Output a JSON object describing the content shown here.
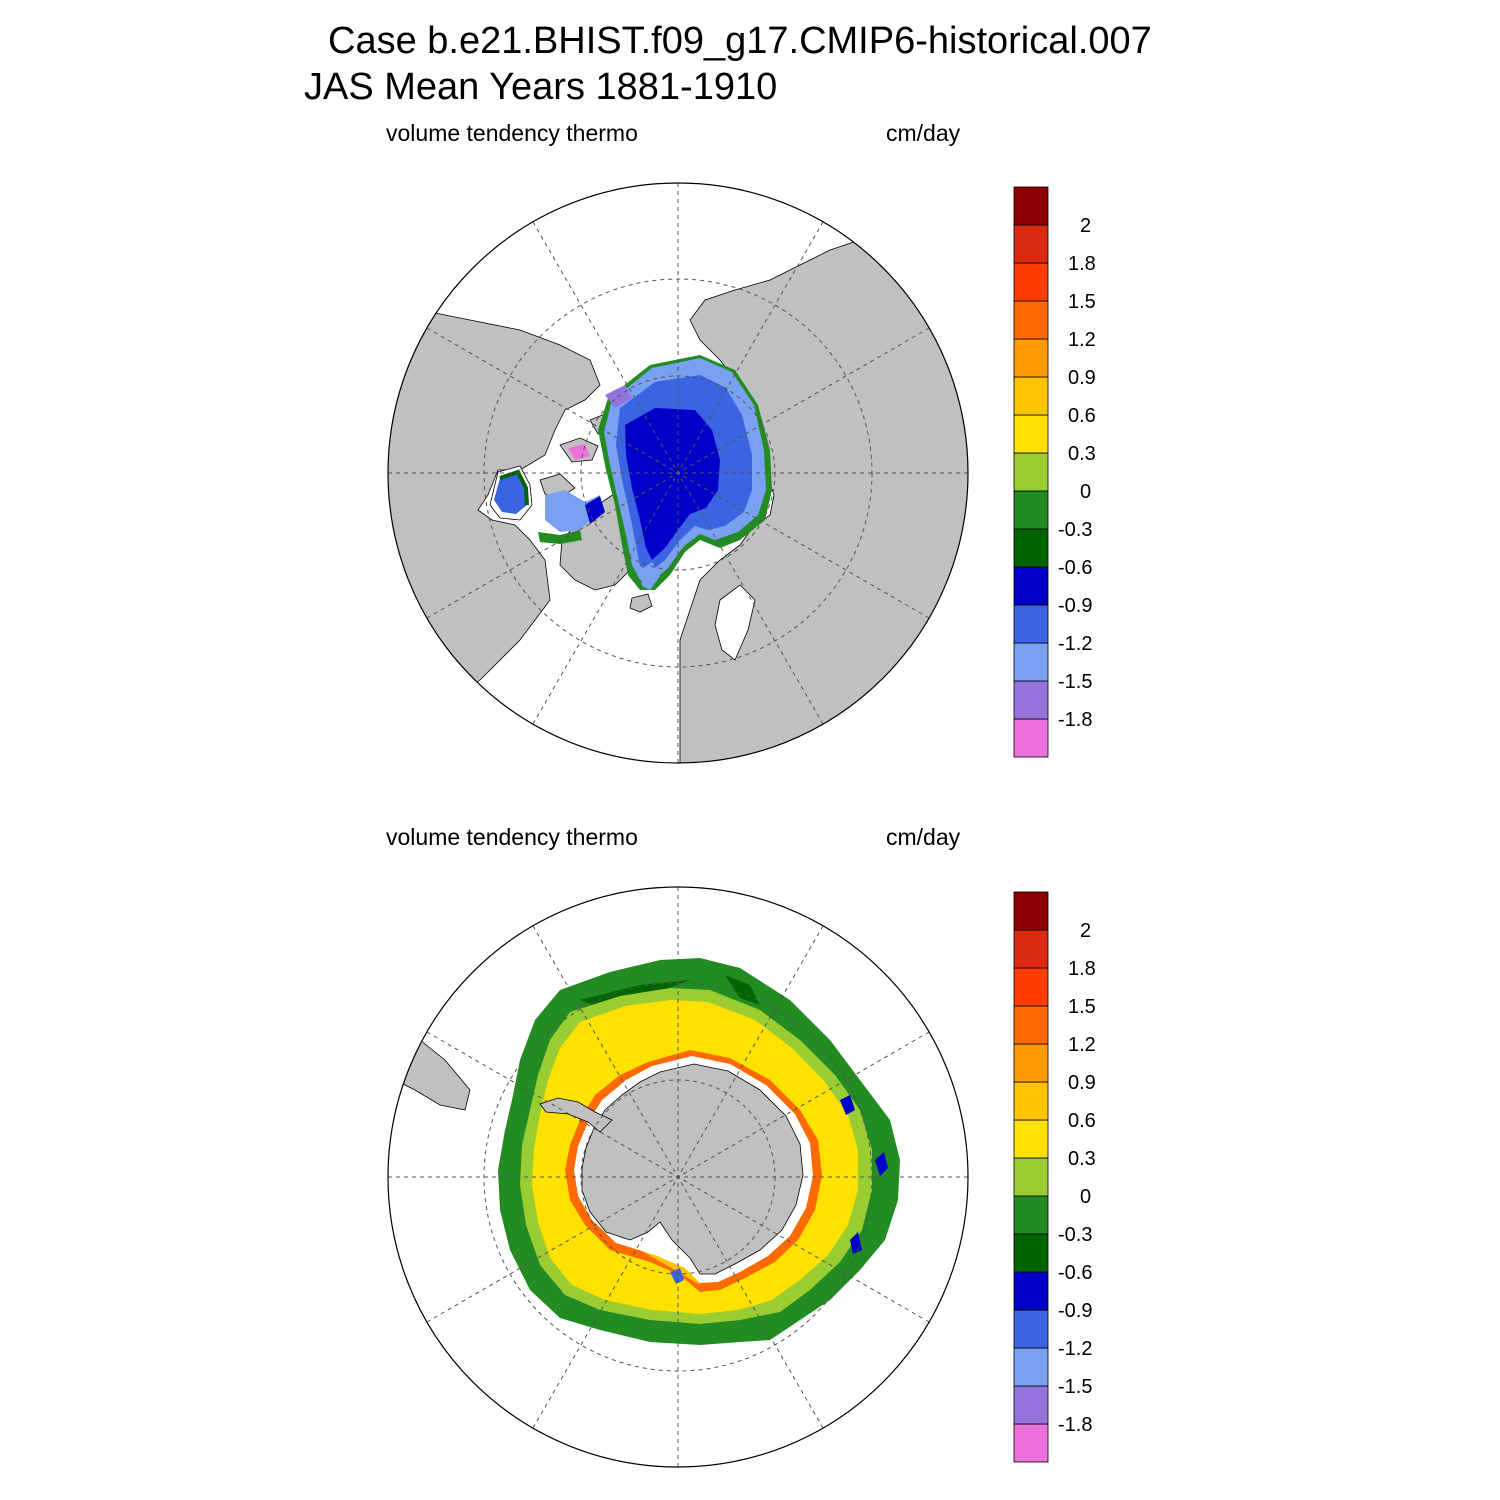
{
  "title": {
    "line1": "Case b.e21.BHIST.f09_g17.CMIP6-historical.007",
    "line2": "JAS Mean   Years 1881-1910"
  },
  "panels": [
    {
      "id": "north",
      "variable": "volume tendency thermo",
      "units": "cm/day",
      "hemisphere": "north-polar-stereographic"
    },
    {
      "id": "south",
      "variable": "volume tendency thermo",
      "units": "cm/day",
      "hemisphere": "south-polar-stereographic"
    }
  ],
  "colorbar": {
    "colors": [
      "#ee70dc",
      "#9474dc",
      "#7aa0f2",
      "#3a64e2",
      "#0000c8",
      "#006400",
      "#228b22",
      "#9acd32",
      "#ffe100",
      "#ffc400",
      "#ff9a00",
      "#ff6a00",
      "#ff3c00",
      "#dc2a10",
      "#8b0000"
    ],
    "labels": [
      "-1.8",
      "-1.5",
      "-1.2",
      "-0.9",
      "-0.6",
      "-0.3",
      "0",
      "0.3",
      "0.6",
      "0.9",
      "1.2",
      "1.5",
      "1.8",
      "2"
    ]
  },
  "map_colors": {
    "land": "#c0c0c0",
    "ocean_no_data": "#ffffff",
    "coastline": "#000000",
    "grid": "#555555"
  }
}
